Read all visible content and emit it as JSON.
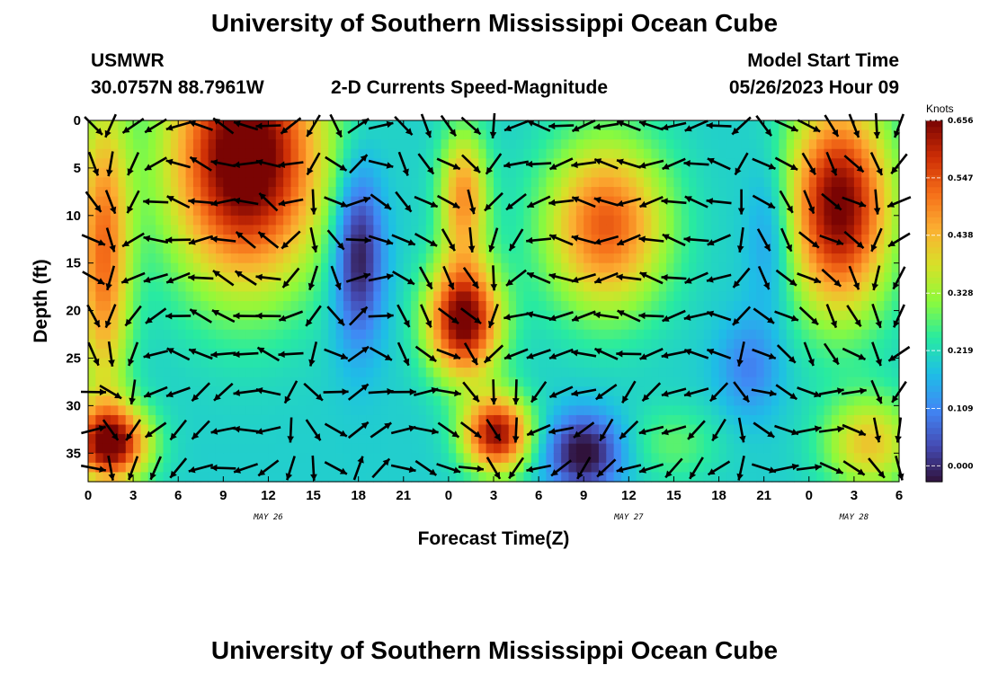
{
  "header": {
    "title_top": "University of Southern Mississippi Ocean Cube",
    "station": "USMWR",
    "coords": "30.0757N  88.7961W",
    "subtitle": "2-D Currents Speed-Magnitude",
    "model_start_label": "Model Start Time",
    "model_start_value": "05/26/2023 Hour 09",
    "title_bottom": "University of Southern Mississippi Ocean Cube"
  },
  "chart_data": {
    "type": "heatmap",
    "xlabel": "Forecast Time(Z)",
    "ylabel": "Depth (ft)",
    "x_unit": "hours from 2023-05-26 00Z",
    "xlim": [
      0,
      54
    ],
    "ylim": [
      0,
      38
    ],
    "x_ticks": [
      0,
      3,
      6,
      9,
      12,
      15,
      18,
      21,
      24,
      27,
      30,
      33,
      36,
      39,
      42,
      45,
      48,
      51,
      54
    ],
    "x_tick_labels": [
      "0",
      "3",
      "6",
      "9",
      "12",
      "15",
      "18",
      "21",
      "0",
      "3",
      "6",
      "9",
      "12",
      "15",
      "18",
      "21",
      "0",
      "3",
      "6"
    ],
    "date_labels": [
      {
        "x": 12,
        "text": "MAY 26"
      },
      {
        "x": 36,
        "text": "MAY 27"
      },
      {
        "x": 51,
        "text": "MAY 28"
      }
    ],
    "y_ticks": [
      0,
      5,
      10,
      15,
      20,
      25,
      30,
      35
    ],
    "y_tick_labels": [
      "0",
      "5",
      "10",
      "15",
      "20",
      "25",
      "30",
      "35"
    ],
    "colorbar": {
      "title": "Knots",
      "min": -0.03,
      "max": 0.656,
      "ticks": [
        0.0,
        0.109,
        0.219,
        0.328,
        0.438,
        0.547,
        0.656
      ],
      "tick_labels": [
        "0.000",
        "0.109",
        "0.219",
        "0.328",
        "0.438",
        "0.547",
        "0.656"
      ]
    },
    "speed_field_blobs": [
      {
        "t": 10.5,
        "d": 4,
        "st": 5.0,
        "sd": 13,
        "a": 0.52
      },
      {
        "t": 1.0,
        "d": 14,
        "st": 1.8,
        "sd": 16,
        "a": 0.32
      },
      {
        "t": 1.5,
        "d": 34,
        "st": 2.5,
        "sd": 4,
        "a": 0.45
      },
      {
        "t": 25.0,
        "d": 21,
        "st": 2.4,
        "sd": 6,
        "a": 0.48
      },
      {
        "t": 25.0,
        "d": 8,
        "st": 1.6,
        "sd": 7,
        "a": 0.28
      },
      {
        "t": 27.2,
        "d": 33,
        "st": 2.2,
        "sd": 4,
        "a": 0.44
      },
      {
        "t": 34.5,
        "d": 11,
        "st": 4.0,
        "sd": 9,
        "a": 0.34
      },
      {
        "t": 50.0,
        "d": 9,
        "st": 3.4,
        "sd": 11,
        "a": 0.47
      },
      {
        "t": 52.0,
        "d": 34,
        "st": 3.0,
        "sd": 5,
        "a": 0.22
      },
      {
        "t": 39.0,
        "d": 34,
        "st": 3.0,
        "sd": 4,
        "a": 0.08
      }
    ],
    "speed_field_lows": [
      {
        "t": 18.0,
        "d": 14,
        "st": 1.6,
        "sd": 9,
        "a": 0.24
      },
      {
        "t": 33.0,
        "d": 35,
        "st": 2.4,
        "sd": 4,
        "a": 0.25
      },
      {
        "t": 44.0,
        "d": 26,
        "st": 2.0,
        "sd": 5,
        "a": 0.1
      },
      {
        "t": 45.5,
        "d": 12,
        "st": 1.6,
        "sd": 8,
        "a": 0.1
      }
    ],
    "speed_field_base": 0.2,
    "vector_columns": [
      0,
      1.5,
      3,
      4.5,
      6,
      7.5,
      9,
      10.5,
      12,
      13.5,
      15,
      16.5,
      18,
      19.5,
      21,
      22.5,
      24,
      25.5,
      27,
      28.5,
      30,
      31.5,
      33,
      34.5,
      36,
      37.5,
      39,
      40.5,
      42,
      43.5,
      45,
      46.5,
      48,
      49.5,
      51,
      52.5,
      54
    ],
    "vector_depths": [
      0,
      4,
      8,
      12,
      16,
      20,
      24,
      28,
      32,
      36
    ],
    "vector_direction_keys": [
      {
        "t": 0,
        "dir": "SE"
      },
      {
        "t": 3,
        "dir": "SW"
      },
      {
        "t": 5,
        "dir": "W"
      },
      {
        "t": 12,
        "dir": "WNW"
      },
      {
        "t": 16,
        "dir": "SSE"
      },
      {
        "t": 18,
        "dir": "ENE"
      },
      {
        "t": 21,
        "dir": "SE"
      },
      {
        "t": 25,
        "dir": "SE"
      },
      {
        "t": 27,
        "dir": "SSW"
      },
      {
        "t": 30,
        "dir": "W"
      },
      {
        "t": 36,
        "dir": "W"
      },
      {
        "t": 42,
        "dir": "W"
      },
      {
        "t": 45,
        "dir": "SE"
      },
      {
        "t": 48,
        "dir": "SE"
      },
      {
        "t": 51,
        "dir": "SE"
      },
      {
        "t": 54,
        "dir": "SW"
      }
    ]
  }
}
